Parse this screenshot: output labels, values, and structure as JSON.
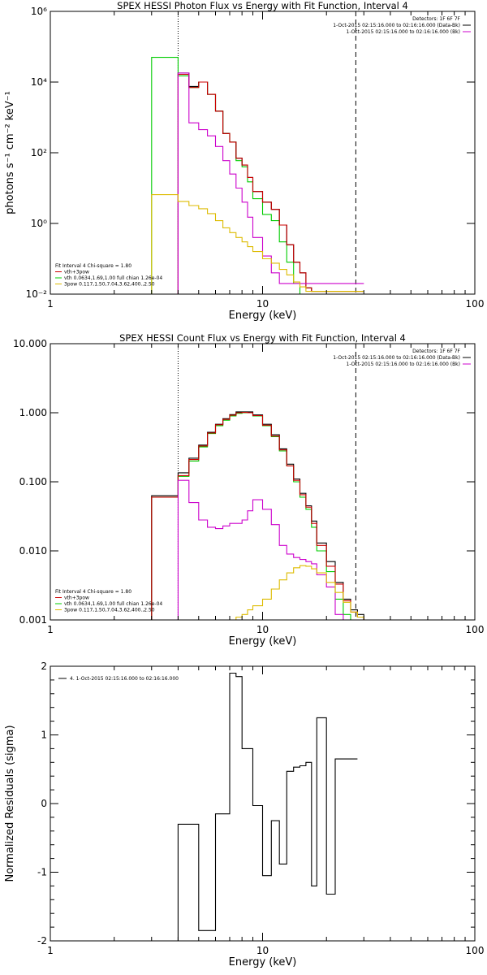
{
  "chart_data": [
    {
      "type": "line",
      "title": "SPEX HESSI Photon Flux vs Energy with Fit Function, Interval 4",
      "xlabel": "Energy (keV)",
      "ylabel": "photons s⁻¹ cm⁻² keV⁻¹",
      "xscale": "log",
      "yscale": "log",
      "xlim": [
        1,
        100
      ],
      "ylim": [
        0.01,
        1000000
      ],
      "xticks": [
        {
          "v": 1,
          "label": "1"
        },
        {
          "v": 10,
          "label": "10"
        },
        {
          "v": 100,
          "label": "100"
        }
      ],
      "yticks": [
        {
          "v": 0.01,
          "label": "10⁻²"
        },
        {
          "v": 1,
          "label": "10⁰"
        },
        {
          "v": 100,
          "label": "10²"
        },
        {
          "v": 10000,
          "label": "10⁴"
        },
        {
          "v": 1000000,
          "label": "10⁶"
        }
      ],
      "vlines": [
        {
          "x": 4,
          "style": "dotted"
        },
        {
          "x": 27.5,
          "style": "dashed"
        }
      ],
      "top_legend": [
        {
          "text": "Detectors: 1F 6F 7F",
          "color": ""
        },
        {
          "text": "1-Oct-2015 02:15:16.000 to 02:16:16.000 (Data-Bk)",
          "color": "#000000"
        },
        {
          "text": "1-Oct-2015 02:15:16.000 to 02:16:16.000 (Bk)",
          "color": "#cc00cc"
        }
      ],
      "fit_legend": [
        {
          "text": "Fit Interval  4   Chi-square = 1.80",
          "color": ""
        },
        {
          "text": "vth+3pow",
          "color": "#cc0000"
        },
        {
          "text": "vth 0.0634,1.69,1.00  full chian 1.26e-04",
          "color": "#00cc00"
        },
        {
          "text": "3pow 0.117,1.50,7.04,3.62,400.,2.50",
          "color": "#ddbb00"
        }
      ],
      "edges": [
        3.0,
        4.0,
        4.5,
        5.0,
        5.5,
        6.0,
        6.5,
        7.0,
        7.5,
        8.0,
        8.5,
        9.0,
        10.0,
        11.0,
        12.0,
        13.0,
        14.0,
        15.0,
        16.0,
        17.0,
        18.0,
        20.0,
        22.0,
        24.0,
        26.0,
        28.0,
        30.0
      ],
      "series": [
        {
          "color": "#00cc00",
          "values": [
            50000,
            15000,
            7000,
            10000,
            4500,
            1500,
            350,
            200,
            60,
            40,
            15,
            5,
            1.8,
            1.2,
            0.3,
            0.08,
            0.02,
            0.009,
            0.009,
            0.009,
            0.009,
            0.009,
            0.009,
            0.009,
            0.009,
            0.009
          ]
        },
        {
          "color": "#000000",
          "values": [
            null,
            18000,
            7500,
            10000,
            4500,
            1500,
            350,
            200,
            70,
            45,
            20,
            8,
            4,
            2.5,
            0.9,
            0.25,
            0.08,
            0.04,
            0.015,
            0.012,
            0.012,
            0.012,
            0.012,
            0.012,
            0.012,
            0.012
          ]
        },
        {
          "color": "#cc0000",
          "values": [
            null,
            16500,
            7000,
            10000,
            4500,
            1500,
            350,
            200,
            70,
            45,
            20,
            8,
            4,
            2.5,
            0.9,
            0.25,
            0.08,
            0.04,
            0.015,
            0.012,
            0.012,
            0.012,
            0.012,
            0.012,
            0.012,
            0.012
          ]
        },
        {
          "color": "#cc00cc",
          "values": [
            null,
            18000,
            700,
            450,
            300,
            150,
            60,
            25,
            10,
            4,
            1.5,
            0.4,
            0.12,
            0.04,
            0.02,
            0.02,
            0.02,
            0.02,
            0.02,
            0.02,
            0.02,
            0.02,
            0.02,
            0.02,
            0.02,
            0.02
          ]
        },
        {
          "color": "#ddbb00",
          "values": [
            6.5,
            4.2,
            3.2,
            2.6,
            1.9,
            1.2,
            0.75,
            0.55,
            0.4,
            0.3,
            0.22,
            0.16,
            0.1,
            0.075,
            0.05,
            0.035,
            0.022,
            0.016,
            0.012,
            0.012,
            0.012,
            0.012,
            0.012,
            0.012,
            0.012,
            0.012
          ]
        }
      ]
    },
    {
      "type": "line",
      "title": "SPEX HESSI Count Flux vs Energy with Fit Function, Interval 4",
      "xlabel": "Energy (keV)",
      "ylabel": "",
      "xscale": "log",
      "yscale": "log",
      "xlim": [
        1,
        100
      ],
      "ylim": [
        0.001,
        10
      ],
      "xticks": [
        {
          "v": 1,
          "label": "1"
        },
        {
          "v": 10,
          "label": "10"
        },
        {
          "v": 100,
          "label": "100"
        }
      ],
      "yticks": [
        {
          "v": 0.001,
          "label": "0.001"
        },
        {
          "v": 0.01,
          "label": "0.010"
        },
        {
          "v": 0.1,
          "label": "0.100"
        },
        {
          "v": 1,
          "label": "1.000"
        },
        {
          "v": 10,
          "label": "10.000"
        }
      ],
      "vlines": [
        {
          "x": 4,
          "style": "dotted"
        },
        {
          "x": 27.5,
          "style": "dashed"
        }
      ],
      "top_legend": [
        {
          "text": "Detectors: 1F 6F 7F",
          "color": ""
        },
        {
          "text": "1-Oct-2015 02:15:16.000 to 02:16:16.000 (Data-Bk)",
          "color": "#000000"
        },
        {
          "text": "1-Oct-2015 02:15:16.000 to 02:16:16.000 (Bk)",
          "color": "#cc00cc"
        }
      ],
      "fit_legend": [
        {
          "text": "Fit Interval  4   Chi-square = 1.80",
          "color": ""
        },
        {
          "text": "vth+3pow",
          "color": "#cc0000"
        },
        {
          "text": "vth 0.0634,1.69,1.00  full chian 1.26e-04",
          "color": "#00cc00"
        },
        {
          "text": "3pow 0.117,1.50,7.04,3.62,400.,2.50",
          "color": "#ddbb00"
        }
      ],
      "edges": [
        3.0,
        4.0,
        4.5,
        5.0,
        5.5,
        6.0,
        6.5,
        7.0,
        7.5,
        8.0,
        8.5,
        9.0,
        10.0,
        11.0,
        12.0,
        13.0,
        14.0,
        15.0,
        16.0,
        17.0,
        18.0,
        20.0,
        22.0,
        24.0,
        26.0,
        28.0,
        30.0,
        32.0,
        34.0
      ],
      "series": [
        {
          "color": "#00cc00",
          "values": [
            0.06,
            0.12,
            0.2,
            0.32,
            0.5,
            0.65,
            0.78,
            0.9,
            0.98,
            1.0,
            1.0,
            0.9,
            0.65,
            0.45,
            0.28,
            0.17,
            0.1,
            0.06,
            0.04,
            0.022,
            0.01,
            0.005,
            0.002,
            0.0012,
            0.001,
            0.001,
            0.001,
            0.001
          ]
        },
        {
          "color": "#000000",
          "values": [
            0.063,
            0.135,
            0.22,
            0.34,
            0.52,
            0.68,
            0.82,
            0.94,
            1.03,
            1.03,
            1.03,
            0.93,
            0.68,
            0.48,
            0.3,
            0.18,
            0.11,
            0.068,
            0.045,
            0.027,
            0.013,
            0.007,
            0.0035,
            0.002,
            0.0014,
            0.0012,
            0.001,
            0.001
          ]
        },
        {
          "color": "#cc0000",
          "values": [
            0.06,
            0.123,
            0.21,
            0.33,
            0.51,
            0.67,
            0.8,
            0.92,
            1.0,
            1.01,
            1.0,
            0.91,
            0.66,
            0.46,
            0.29,
            0.17,
            0.105,
            0.065,
            0.043,
            0.025,
            0.012,
            0.006,
            0.0033,
            0.0019,
            0.0013,
            0.0011,
            0.001,
            0.001
          ]
        },
        {
          "color": "#cc00cc",
          "values": [
            null,
            0.105,
            0.05,
            0.028,
            0.022,
            0.021,
            0.023,
            0.025,
            0.025,
            0.028,
            0.038,
            0.055,
            0.04,
            0.024,
            0.012,
            0.009,
            0.008,
            0.0075,
            0.007,
            0.0065,
            0.0045,
            0.003,
            0.0012,
            0.001,
            0.001,
            0.001,
            0.001,
            0.001
          ]
        },
        {
          "color": "#ddbb00",
          "values": [
            null,
            null,
            null,
            null,
            null,
            null,
            null,
            0.001,
            0.0011,
            0.0012,
            0.0014,
            0.0016,
            0.002,
            0.0028,
            0.0038,
            0.0048,
            0.0057,
            0.0061,
            0.006,
            0.0055,
            0.0048,
            0.0035,
            0.0025,
            0.0018,
            0.0013,
            0.0011,
            0.001,
            0.001
          ]
        }
      ]
    },
    {
      "type": "line",
      "title": "",
      "xlabel": "Energy (keV)",
      "ylabel": "Normalized Residuals (sigma)",
      "xscale": "log",
      "yscale": "linear",
      "xlim": [
        1,
        100
      ],
      "ylim": [
        -2,
        2
      ],
      "xticks": [
        {
          "v": 1,
          "label": "1"
        },
        {
          "v": 10,
          "label": "10"
        },
        {
          "v": 100,
          "label": "100"
        }
      ],
      "yticks": [
        {
          "v": -2,
          "label": "-2"
        },
        {
          "v": -1,
          "label": "-1"
        },
        {
          "v": 0,
          "label": "0"
        },
        {
          "v": 1,
          "label": "1"
        },
        {
          "v": 2,
          "label": "2"
        }
      ],
      "vlines": [],
      "legend": [
        {
          "text": "4.  1-Oct-2015 02:15:16.000 to 02:16:16.000",
          "color": "#000000"
        }
      ],
      "edges": [
        4.0,
        5.0,
        6.0,
        7.0,
        7.5,
        8.0,
        9.0,
        10.0,
        11.0,
        12.0,
        13.0,
        14.0,
        15.0,
        16.0,
        17.0,
        18.0,
        20.0,
        22.0,
        24.0,
        26.0,
        28.0
      ],
      "series": [
        {
          "color": "#000000",
          "values": [
            -0.3,
            -1.85,
            -0.15,
            1.9,
            1.85,
            0.8,
            -0.03,
            -1.05,
            -0.25,
            -0.88,
            0.47,
            0.53,
            0.55,
            0.6,
            -1.2,
            1.25,
            -1.32,
            0.65,
            0.65,
            0.65
          ]
        }
      ]
    }
  ]
}
